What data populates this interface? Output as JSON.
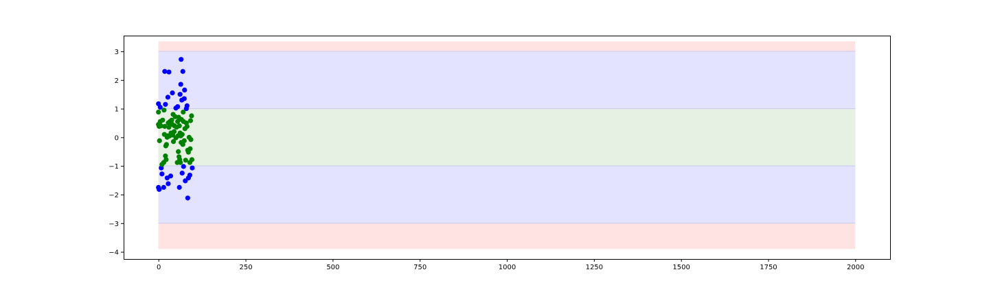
{
  "chart_data": {
    "type": "scatter",
    "xlim": [
      -100,
      2100
    ],
    "ylim": [
      -4.25,
      3.55
    ],
    "xticks": [
      0,
      250,
      500,
      750,
      1000,
      1250,
      1500,
      1750,
      2000
    ],
    "yticks": [
      3,
      2,
      1,
      0,
      -1,
      -2,
      -3,
      -4
    ],
    "grid": false,
    "bands": [
      {
        "y0": -3.9,
        "y1": 3.35,
        "x0": 0,
        "x1": 2000,
        "color": "#ffe2e2"
      },
      {
        "y0": -3.0,
        "y1": 3.0,
        "x0": 0,
        "x1": 2000,
        "color": "#e3e3ff"
      },
      {
        "y0": -1.0,
        "y1": 1.0,
        "x0": 0,
        "x1": 2000,
        "color": "#e6f0e3"
      }
    ],
    "series": [
      {
        "color": "#0000ff",
        "points": [
          [
            0,
            1.17
          ],
          [
            0,
            -1.75
          ],
          [
            2,
            -1.82
          ],
          [
            5,
            1.05
          ],
          [
            8,
            -1.07
          ],
          [
            10,
            -1.28
          ],
          [
            15,
            -1.75
          ],
          [
            18,
            2.3
          ],
          [
            20,
            1.15
          ],
          [
            25,
            -1.42
          ],
          [
            27,
            1.4
          ],
          [
            28,
            -1.62
          ],
          [
            30,
            2.28
          ],
          [
            35,
            -1.35
          ],
          [
            40,
            1.55
          ],
          [
            50,
            1.02
          ],
          [
            55,
            1.07
          ],
          [
            60,
            -1.75
          ],
          [
            62,
            1.5
          ],
          [
            64,
            1.85
          ],
          [
            65,
            2.72
          ],
          [
            67,
            1.3
          ],
          [
            68,
            -1.25
          ],
          [
            70,
            2.3
          ],
          [
            72,
            -1.02
          ],
          [
            74,
            1.35
          ],
          [
            75,
            1.65
          ],
          [
            77,
            -1.52
          ],
          [
            80,
            1.0
          ],
          [
            82,
            1.1
          ],
          [
            84,
            -2.12
          ],
          [
            86,
            -1.42
          ],
          [
            90,
            -1.32
          ],
          [
            97,
            -1.07
          ]
        ]
      },
      {
        "color": "#008000",
        "points": [
          [
            0,
            0.88
          ],
          [
            0,
            0.45
          ],
          [
            2,
            0.38
          ],
          [
            3,
            -0.12
          ],
          [
            5,
            0.55
          ],
          [
            7,
            0.4
          ],
          [
            10,
            -0.95
          ],
          [
            12,
            0.6
          ],
          [
            15,
            -0.88
          ],
          [
            16,
            0.95
          ],
          [
            17,
            0.1
          ],
          [
            18,
            0.38
          ],
          [
            20,
            -0.65
          ],
          [
            21,
            -0.3
          ],
          [
            22,
            -0.78
          ],
          [
            23,
            -0.25
          ],
          [
            25,
            0.0
          ],
          [
            26,
            0.05
          ],
          [
            28,
            0.5
          ],
          [
            30,
            0.35
          ],
          [
            32,
            0.05
          ],
          [
            33,
            0.55
          ],
          [
            35,
            0.45
          ],
          [
            36,
            0.15
          ],
          [
            38,
            0.6
          ],
          [
            40,
            0.45
          ],
          [
            41,
            0.08
          ],
          [
            42,
            0.8
          ],
          [
            43,
            -0.15
          ],
          [
            45,
            0.2
          ],
          [
            46,
            0.4
          ],
          [
            48,
            0.72
          ],
          [
            50,
            -0.02
          ],
          [
            52,
            0.35
          ],
          [
            54,
            -0.88
          ],
          [
            55,
            0.55
          ],
          [
            56,
            0.05
          ],
          [
            57,
            -0.5
          ],
          [
            58,
            0.7
          ],
          [
            59,
            -0.68
          ],
          [
            60,
            0.4
          ],
          [
            61,
            -0.78
          ],
          [
            62,
            0.15
          ],
          [
            63,
            -0.88
          ],
          [
            64,
            0.05
          ],
          [
            65,
            -0.18
          ],
          [
            66,
            0.62
          ],
          [
            68,
            0.1
          ],
          [
            70,
            -0.25
          ],
          [
            71,
            0.88
          ],
          [
            72,
            0.55
          ],
          [
            74,
            -0.12
          ],
          [
            76,
            0.3
          ],
          [
            78,
            -0.8
          ],
          [
            80,
            0.5
          ],
          [
            82,
            0.38
          ],
          [
            84,
            -0.45
          ],
          [
            86,
            -0.52
          ],
          [
            88,
            0.0
          ],
          [
            90,
            -0.88
          ],
          [
            91,
            -0.4
          ],
          [
            92,
            0.58
          ],
          [
            93,
            -0.08
          ],
          [
            95,
            0.75
          ],
          [
            96,
            -0.78
          ]
        ]
      }
    ]
  }
}
